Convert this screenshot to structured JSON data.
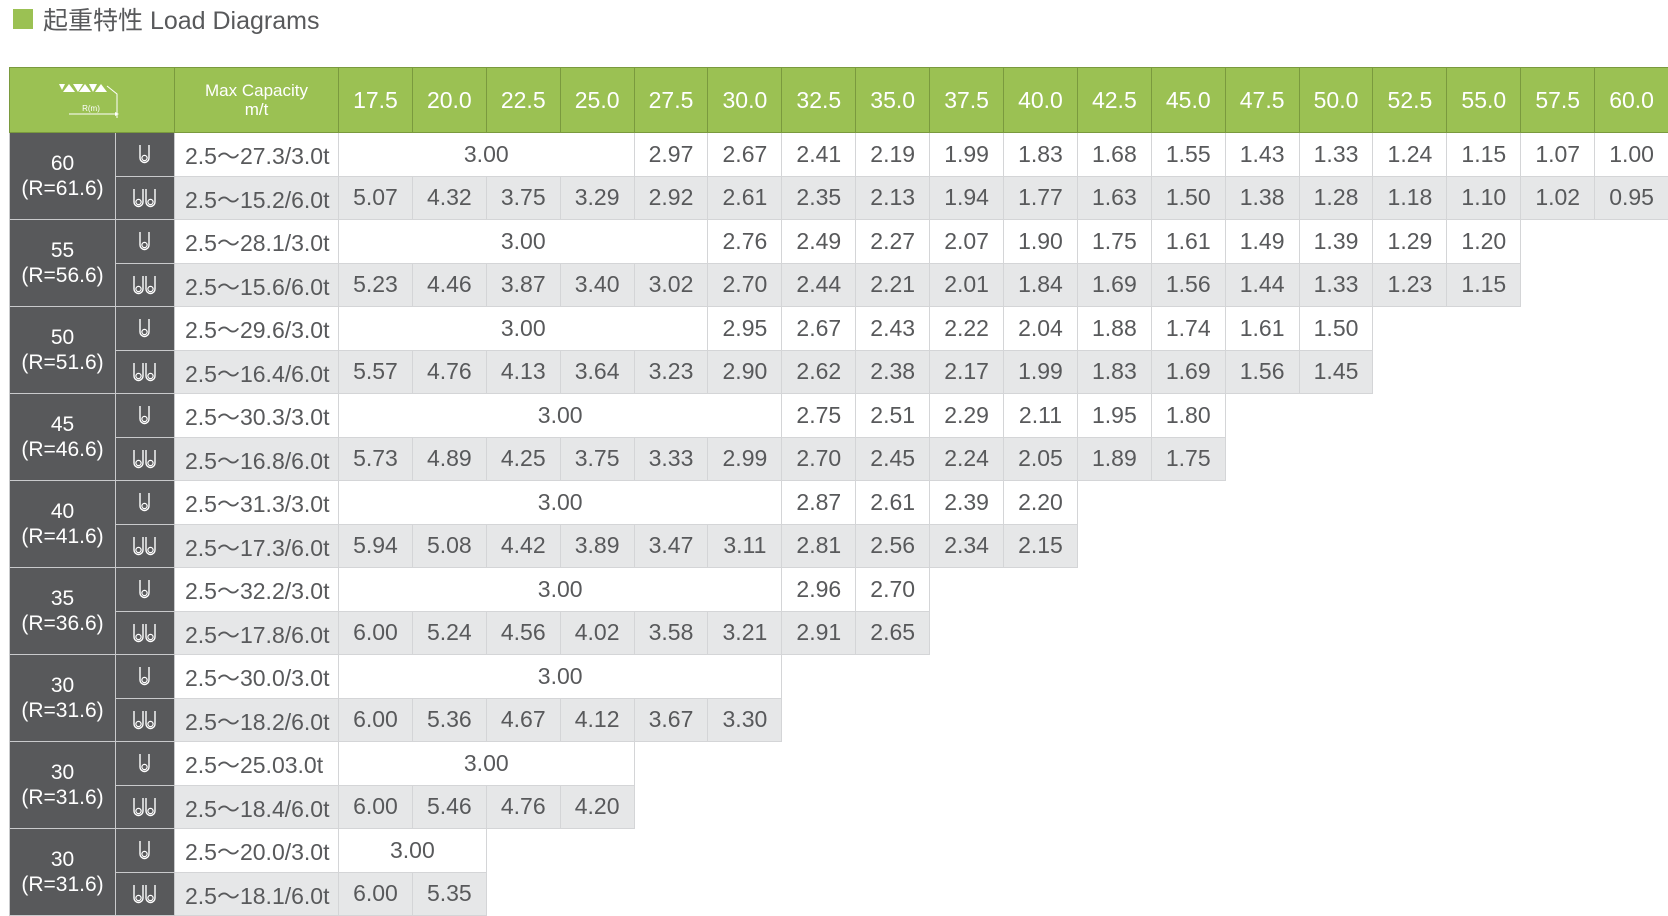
{
  "title": "起重特性 Load Diagrams",
  "colors": {
    "accent": "#9bc153",
    "dark": "#58595b",
    "row_alt": "#e6e7e8"
  },
  "header": {
    "corner_icon": "boom-radius-diagram-icon",
    "corner_label": "R(m)",
    "max_capacity": "Max Capacity",
    "max_capacity_unit": "m/t",
    "radii": [
      "17.5",
      "20.0",
      "22.5",
      "25.0",
      "27.5",
      "30.0",
      "32.5",
      "35.0",
      "37.5",
      "40.0",
      "42.5",
      "45.0",
      "47.5",
      "50.0",
      "52.5",
      "55.0",
      "57.5",
      "60.0"
    ]
  },
  "groups": [
    {
      "boom": "60",
      "radius": "(R=61.6)",
      "single": {
        "icon": "single-hook-icon",
        "max": "2.5～27.3/3.0t",
        "span": 4,
        "span_value": "3.00",
        "values": [
          "2.97",
          "2.67",
          "2.41",
          "2.19",
          "1.99",
          "1.83",
          "1.68",
          "1.55",
          "1.43",
          "1.33",
          "1.24",
          "1.15",
          "1.07",
          "1.00"
        ]
      },
      "double": {
        "icon": "double-hook-icon",
        "max": "2.5～15.2/6.0t",
        "values": [
          "5.07",
          "4.32",
          "3.75",
          "3.29",
          "2.92",
          "2.61",
          "2.35",
          "2.13",
          "1.94",
          "1.77",
          "1.63",
          "1.50",
          "1.38",
          "1.28",
          "1.18",
          "1.10",
          "1.02",
          "0.95"
        ]
      }
    },
    {
      "boom": "55",
      "radius": "(R=56.6)",
      "single": {
        "icon": "single-hook-icon",
        "max": "2.5～28.1/3.0t",
        "span": 5,
        "span_value": "3.00",
        "values": [
          "2.76",
          "2.49",
          "2.27",
          "2.07",
          "1.90",
          "1.75",
          "1.61",
          "1.49",
          "1.39",
          "1.29",
          "1.20"
        ]
      },
      "double": {
        "icon": "double-hook-icon",
        "max": "2.5～15.6/6.0t",
        "values": [
          "5.23",
          "4.46",
          "3.87",
          "3.40",
          "3.02",
          "2.70",
          "2.44",
          "2.21",
          "2.01",
          "1.84",
          "1.69",
          "1.56",
          "1.44",
          "1.33",
          "1.23",
          "1.15"
        ]
      }
    },
    {
      "boom": "50",
      "radius": "(R=51.6)",
      "single": {
        "icon": "single-hook-icon",
        "max": "2.5～29.6/3.0t",
        "span": 5,
        "span_value": "3.00",
        "values": [
          "2.95",
          "2.67",
          "2.43",
          "2.22",
          "2.04",
          "1.88",
          "1.74",
          "1.61",
          "1.50"
        ]
      },
      "double": {
        "icon": "double-hook-icon",
        "max": "2.5～16.4/6.0t",
        "values": [
          "5.57",
          "4.76",
          "4.13",
          "3.64",
          "3.23",
          "2.90",
          "2.62",
          "2.38",
          "2.17",
          "1.99",
          "1.83",
          "1.69",
          "1.56",
          "1.45"
        ]
      }
    },
    {
      "boom": "45",
      "radius": "(R=46.6)",
      "single": {
        "icon": "single-hook-icon",
        "max": "2.5～30.3/3.0t",
        "span": 6,
        "span_value": "3.00",
        "values": [
          "2.75",
          "2.51",
          "2.29",
          "2.11",
          "1.95",
          "1.80"
        ]
      },
      "double": {
        "icon": "double-hook-icon",
        "max": "2.5～16.8/6.0t",
        "values": [
          "5.73",
          "4.89",
          "4.25",
          "3.75",
          "3.33",
          "2.99",
          "2.70",
          "2.45",
          "2.24",
          "2.05",
          "1.89",
          "1.75"
        ]
      }
    },
    {
      "boom": "40",
      "radius": "(R=41.6)",
      "single": {
        "icon": "single-hook-icon",
        "max": "2.5～31.3/3.0t",
        "span": 6,
        "span_value": "3.00",
        "values": [
          "2.87",
          "2.61",
          "2.39",
          "2.20"
        ]
      },
      "double": {
        "icon": "double-hook-icon",
        "max": "2.5～17.3/6.0t",
        "values": [
          "5.94",
          "5.08",
          "4.42",
          "3.89",
          "3.47",
          "3.11",
          "2.81",
          "2.56",
          "2.34",
          "2.15"
        ]
      }
    },
    {
      "boom": "35",
      "radius": "(R=36.6)",
      "single": {
        "icon": "single-hook-icon",
        "max": "2.5～32.2/3.0t",
        "span": 6,
        "span_value": "3.00",
        "values": [
          "2.96",
          "2.70"
        ]
      },
      "double": {
        "icon": "double-hook-icon",
        "max": "2.5～17.8/6.0t",
        "values": [
          "6.00",
          "5.24",
          "4.56",
          "4.02",
          "3.58",
          "3.21",
          "2.91",
          "2.65"
        ]
      }
    },
    {
      "boom": "30",
      "radius": "(R=31.6)",
      "single": {
        "icon": "single-hook-icon",
        "max": "2.5～30.0/3.0t",
        "span": 6,
        "span_value": "3.00",
        "values": []
      },
      "double": {
        "icon": "double-hook-icon",
        "max": "2.5～18.2/6.0t",
        "values": [
          "6.00",
          "5.36",
          "4.67",
          "4.12",
          "3.67",
          "3.30"
        ]
      }
    },
    {
      "boom": "30",
      "radius": "(R=31.6)",
      "single": {
        "icon": "single-hook-icon",
        "max": "2.5～25.03.0t",
        "span": 4,
        "span_value": "3.00",
        "values": []
      },
      "double": {
        "icon": "double-hook-icon",
        "max": "2.5～18.4/6.0t",
        "values": [
          "6.00",
          "5.46",
          "4.76",
          "4.20"
        ]
      }
    },
    {
      "boom": "30",
      "radius": "(R=31.6)",
      "single": {
        "icon": "single-hook-icon",
        "max": "2.5～20.0/3.0t",
        "span": 2,
        "span_value": "3.00",
        "values": []
      },
      "double": {
        "icon": "double-hook-icon",
        "max": "2.5～18.1/6.0t",
        "values": [
          "6.00",
          "5.35"
        ]
      }
    }
  ]
}
